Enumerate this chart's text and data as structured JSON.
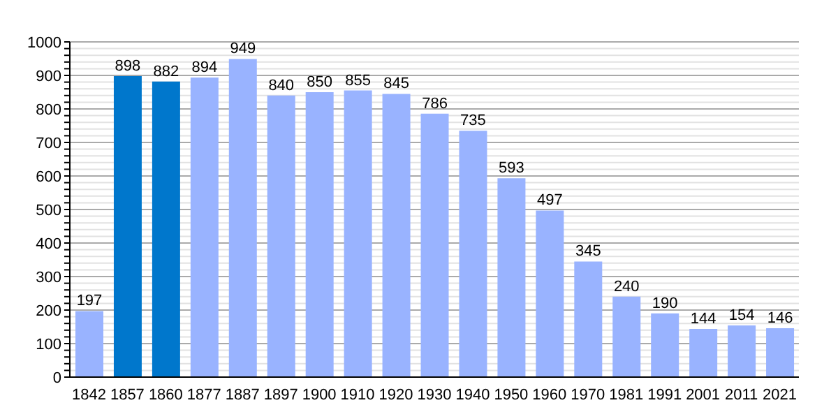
{
  "chart_data": {
    "type": "bar",
    "categories": [
      "1842",
      "1857",
      "1860",
      "1877",
      "1887",
      "1897",
      "1900",
      "1910",
      "1920",
      "1930",
      "1940",
      "1950",
      "1960",
      "1970",
      "1981",
      "1991",
      "2001",
      "2011",
      "2021"
    ],
    "values": [
      197,
      898,
      882,
      894,
      949,
      840,
      850,
      855,
      845,
      786,
      735,
      593,
      497,
      345,
      240,
      190,
      144,
      154,
      146
    ],
    "colors": [
      "#99b3ff",
      "#0077cc",
      "#0077cc",
      "#99b3ff",
      "#99b3ff",
      "#99b3ff",
      "#99b3ff",
      "#99b3ff",
      "#99b3ff",
      "#99b3ff",
      "#99b3ff",
      "#99b3ff",
      "#99b3ff",
      "#99b3ff",
      "#99b3ff",
      "#99b3ff",
      "#99b3ff",
      "#99b3ff",
      "#99b3ff"
    ],
    "data_labels": true,
    "ylim": [
      0,
      1000
    ],
    "yticks": [
      0,
      {
        "value": 20,
        "label": null
      },
      {
        "value": 40,
        "label": null
      },
      {
        "value": 60,
        "label": null
      },
      {
        "value": 80,
        "label": null
      },
      100,
      {
        "value": 120,
        "label": null
      },
      {
        "value": 140,
        "label": null
      },
      {
        "value": 160,
        "label": null
      },
      {
        "value": 180,
        "label": null
      },
      200,
      {
        "value": 220,
        "label": null
      },
      {
        "value": 240,
        "label": null
      },
      {
        "value": 260,
        "label": null
      },
      {
        "value": 280,
        "label": null
      },
      300,
      {
        "value": 320,
        "label": null
      },
      {
        "value": 340,
        "label": null
      },
      {
        "value": 360,
        "label": null
      },
      {
        "value": 380,
        "label": null
      },
      400,
      {
        "value": 420,
        "label": null
      },
      {
        "value": 440,
        "label": null
      },
      {
        "value": 460,
        "label": null
      },
      {
        "value": 480,
        "label": null
      },
      500,
      {
        "value": 520,
        "label": null
      },
      {
        "value": 540,
        "label": null
      },
      {
        "value": 560,
        "label": null
      },
      {
        "value": 580,
        "label": null
      },
      600,
      {
        "value": 620,
        "label": null
      },
      {
        "value": 640,
        "label": null
      },
      {
        "value": 660,
        "label": null
      },
      {
        "value": 680,
        "label": null
      },
      700,
      {
        "value": 720,
        "label": null
      },
      {
        "value": 740,
        "label": null
      },
      {
        "value": 760,
        "label": null
      },
      {
        "value": 780,
        "label": null
      },
      800,
      {
        "value": 820,
        "label": null
      },
      {
        "value": 840,
        "label": null
      },
      {
        "value": 860,
        "label": null
      },
      {
        "value": 880,
        "label": null
      },
      900,
      {
        "value": 920,
        "label": null
      },
      {
        "value": 940,
        "label": null
      },
      {
        "value": 960,
        "label": null
      },
      {
        "value": 980,
        "label": null
      },
      1000
    ],
    "grid": "y"
  }
}
